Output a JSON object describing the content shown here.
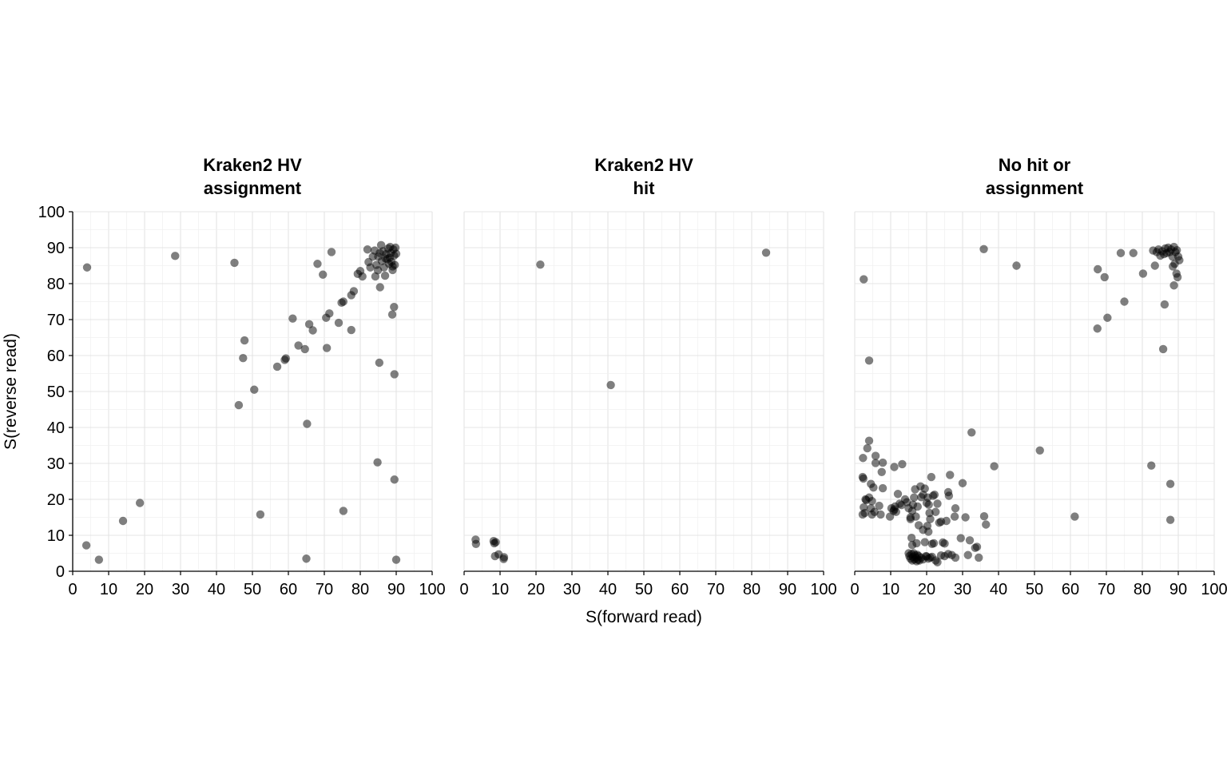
{
  "chart_data": {
    "type": "scatter",
    "xlabel": "S(forward read)",
    "ylabel": "S(reverse read)",
    "xlim": [
      0,
      100
    ],
    "ylim": [
      0,
      100
    ],
    "x_ticks": [
      "0",
      "10",
      "20",
      "30",
      "40",
      "50",
      "60",
      "70",
      "80",
      "90",
      "100"
    ],
    "y_ticks": [
      "0",
      "10",
      "20",
      "30",
      "40",
      "50",
      "60",
      "70",
      "80",
      "90",
      "100"
    ],
    "grid": true,
    "point_color": "#000000",
    "point_opacity": 0.5,
    "facets": [
      {
        "title_lines": [
          "Kraken2 HV",
          "assignment"
        ],
        "points": [
          [
            4,
            84.5
          ],
          [
            28.5,
            87.7
          ],
          [
            45,
            85.8
          ],
          [
            3.8,
            7.2
          ],
          [
            7.3,
            3.2
          ],
          [
            14,
            14
          ],
          [
            18.7,
            19
          ],
          [
            52.2,
            15.8
          ],
          [
            65,
            3.5
          ],
          [
            75.3,
            16.8
          ],
          [
            65.2,
            41
          ],
          [
            84.8,
            30.3
          ],
          [
            89.5,
            25.5
          ],
          [
            90,
            3.2
          ],
          [
            46.2,
            46.2
          ],
          [
            50.5,
            50.5
          ],
          [
            47.4,
            59.3
          ],
          [
            47.8,
            64.2
          ],
          [
            56.9,
            56.9
          ],
          [
            59,
            58.8
          ],
          [
            59.3,
            59.2
          ],
          [
            62.8,
            62.8
          ],
          [
            64.6,
            61.8
          ],
          [
            61.2,
            70.3
          ],
          [
            65.8,
            68.7
          ],
          [
            66.8,
            67
          ],
          [
            70.5,
            70.5
          ],
          [
            71.4,
            71.7
          ],
          [
            70.7,
            62.1
          ],
          [
            74,
            69.1
          ],
          [
            74.8,
            74.7
          ],
          [
            75.3,
            75
          ],
          [
            77.5,
            67.1
          ],
          [
            77.5,
            76.8
          ],
          [
            78.2,
            77.9
          ],
          [
            79.3,
            82.7
          ],
          [
            80,
            83.5
          ],
          [
            80.6,
            82
          ],
          [
            68.1,
            85.5
          ],
          [
            69.6,
            82.5
          ],
          [
            72,
            88.8
          ],
          [
            82,
            89.5
          ],
          [
            82.3,
            86
          ],
          [
            82.8,
            84.5
          ],
          [
            83.5,
            87.5
          ],
          [
            84,
            89.2
          ],
          [
            84.2,
            82
          ],
          [
            84.5,
            85.2
          ],
          [
            84.9,
            83.7
          ],
          [
            85.4,
            88.5
          ],
          [
            85.8,
            90.7
          ],
          [
            86,
            86.3
          ],
          [
            86.3,
            89
          ],
          [
            86.6,
            84.5
          ],
          [
            86.9,
            82.2
          ],
          [
            87.2,
            88.2
          ],
          [
            87.5,
            86.8
          ],
          [
            87.8,
            89.8
          ],
          [
            88,
            85.5
          ],
          [
            88.2,
            87.2
          ],
          [
            88.5,
            88.5
          ],
          [
            88.7,
            86
          ],
          [
            89,
            84.8
          ],
          [
            89.2,
            89.5
          ],
          [
            89.4,
            87.8
          ],
          [
            89.6,
            85.2
          ],
          [
            89.8,
            90
          ],
          [
            90,
            88.3
          ],
          [
            89,
            83.8
          ],
          [
            88.3,
            90.2
          ],
          [
            87,
            87
          ],
          [
            85,
            87.5
          ],
          [
            85.5,
            79
          ],
          [
            88.9,
            71.4
          ],
          [
            89.4,
            73.5
          ],
          [
            85.3,
            58
          ],
          [
            89.5,
            54.8
          ]
        ]
      },
      {
        "title_lines": [
          "Kraken2 HV",
          "hit"
        ],
        "points": [
          [
            21.2,
            85.3
          ],
          [
            84,
            88.6
          ],
          [
            40.8,
            51.8
          ],
          [
            3.2,
            8.8
          ],
          [
            3.3,
            7.6
          ],
          [
            8.2,
            8.4
          ],
          [
            8.8,
            8.1
          ],
          [
            8.4,
            7.8
          ],
          [
            8.6,
            4.2
          ],
          [
            9.6,
            4.7
          ],
          [
            11,
            3.4
          ],
          [
            11.1,
            3.9
          ]
        ]
      },
      {
        "title_lines": [
          "No hit or",
          "assignment"
        ],
        "points": [
          [
            2.5,
            81.2
          ],
          [
            4,
            58.6
          ],
          [
            35.9,
            89.6
          ],
          [
            45,
            85
          ],
          [
            32.5,
            38.6
          ],
          [
            38.8,
            29.2
          ],
          [
            51.5,
            33.6
          ],
          [
            61.2,
            15.2
          ],
          [
            67.5,
            67.5
          ],
          [
            67.6,
            84
          ],
          [
            69.5,
            81.8
          ],
          [
            70.3,
            70.5
          ],
          [
            74,
            88.5
          ],
          [
            75,
            75
          ],
          [
            77.5,
            88.5
          ],
          [
            80.2,
            82.8
          ],
          [
            82.5,
            29.4
          ],
          [
            83,
            89.2
          ],
          [
            83.5,
            85
          ],
          [
            84,
            88.8
          ],
          [
            84.5,
            89.5
          ],
          [
            85,
            87.8
          ],
          [
            85.5,
            89
          ],
          [
            86,
            88.2
          ],
          [
            86.4,
            89.8
          ],
          [
            86.8,
            88.5
          ],
          [
            87.2,
            90
          ],
          [
            87.6,
            88.8
          ],
          [
            88,
            89.5
          ],
          [
            88.4,
            87.5
          ],
          [
            88.8,
            90.2
          ],
          [
            89.2,
            88.8
          ],
          [
            89.6,
            89.3
          ],
          [
            90,
            87.5
          ],
          [
            90.3,
            86.5
          ],
          [
            89,
            85.5
          ],
          [
            88.5,
            84.8
          ],
          [
            89.5,
            82.8
          ],
          [
            89.8,
            81.8
          ],
          [
            88.8,
            79.5
          ],
          [
            86.2,
            74.2
          ],
          [
            85.8,
            61.8
          ],
          [
            87.8,
            24.3
          ],
          [
            87.8,
            14.3
          ],
          [
            2.3,
            31.5
          ],
          [
            3.5,
            34.2
          ],
          [
            4,
            36.3
          ],
          [
            5.8,
            32.1
          ],
          [
            5.8,
            30.1
          ],
          [
            7.5,
            27.6
          ],
          [
            7.8,
            30.2
          ],
          [
            11,
            29
          ],
          [
            13.2,
            29.8
          ],
          [
            2.2,
            26.2
          ],
          [
            2.4,
            25.8
          ],
          [
            4.5,
            24.3
          ],
          [
            5.2,
            23.3
          ],
          [
            7.8,
            23.1
          ],
          [
            2.5,
            17.8
          ],
          [
            3,
            20
          ],
          [
            3.2,
            19.8
          ],
          [
            4,
            20.5
          ],
          [
            4.8,
            19.5
          ],
          [
            2.8,
            16.2
          ],
          [
            2.2,
            15.8
          ],
          [
            4.5,
            17.5
          ],
          [
            4.8,
            15.8
          ],
          [
            5.5,
            16.5
          ],
          [
            6.8,
            18.2
          ],
          [
            7.2,
            15.8
          ],
          [
            9.8,
            15.2
          ],
          [
            10.2,
            17.5
          ],
          [
            10.8,
            16.8
          ],
          [
            11.2,
            18
          ],
          [
            11,
            17.2
          ],
          [
            11.5,
            16.5
          ],
          [
            12,
            21.5
          ],
          [
            12.5,
            18.8
          ],
          [
            13,
            18.4
          ],
          [
            14,
            20
          ],
          [
            14.5,
            19.2
          ],
          [
            15,
            17.5
          ],
          [
            15.5,
            15
          ],
          [
            15.5,
            14.5
          ],
          [
            16,
            16.8
          ],
          [
            16.2,
            18.5
          ],
          [
            16.5,
            20.5
          ],
          [
            16.8,
            22.8
          ],
          [
            17,
            15.2
          ],
          [
            17.5,
            18
          ],
          [
            17.8,
            12.8
          ],
          [
            18.3,
            23.6
          ],
          [
            18.5,
            20.6
          ],
          [
            19,
            21.3
          ],
          [
            19.5,
            23
          ],
          [
            20,
            19
          ],
          [
            20.3,
            20.5
          ],
          [
            20.6,
            18.5
          ],
          [
            20.8,
            16.2
          ],
          [
            21,
            14.5
          ],
          [
            21.3,
            26.2
          ],
          [
            21.8,
            21
          ],
          [
            22.2,
            21.3
          ],
          [
            22.5,
            16.5
          ],
          [
            23,
            18.8
          ],
          [
            23.5,
            13.5
          ],
          [
            24,
            13.8
          ],
          [
            24.5,
            8
          ],
          [
            25,
            7.7
          ],
          [
            25.5,
            14
          ],
          [
            26,
            22
          ],
          [
            26.2,
            21
          ],
          [
            26.5,
            26.8
          ],
          [
            27.8,
            15.2
          ],
          [
            28,
            17.5
          ],
          [
            29.5,
            9.2
          ],
          [
            30,
            24.5
          ],
          [
            30.8,
            15
          ],
          [
            31.5,
            4.5
          ],
          [
            32,
            8.6
          ],
          [
            33.5,
            6.5
          ],
          [
            34,
            6.8
          ],
          [
            34.5,
            3.8
          ],
          [
            36,
            15.3
          ],
          [
            36.5,
            13
          ],
          [
            20.5,
            11
          ],
          [
            20.2,
            12.6
          ],
          [
            19,
            11.5
          ],
          [
            15.8,
            9.3
          ],
          [
            16,
            7.3
          ],
          [
            17.2,
            7.8
          ],
          [
            19.5,
            8.1
          ],
          [
            21.5,
            7.6
          ],
          [
            22,
            7.8
          ],
          [
            15,
            5
          ],
          [
            15.2,
            4.2
          ],
          [
            15.5,
            3.5
          ],
          [
            15.8,
            4.8
          ],
          [
            16,
            3
          ],
          [
            16.2,
            4
          ],
          [
            16.4,
            5
          ],
          [
            16.6,
            3.3
          ],
          [
            16.8,
            4.4
          ],
          [
            17,
            3.8
          ],
          [
            17.2,
            2.8
          ],
          [
            17.4,
            4.6
          ],
          [
            17.6,
            3.2
          ],
          [
            17.8,
            4.2
          ],
          [
            18,
            3
          ],
          [
            18.5,
            3.8
          ],
          [
            19,
            3.3
          ],
          [
            20,
            4.1
          ],
          [
            20.5,
            3.5
          ],
          [
            21,
            3.8
          ],
          [
            21.5,
            4
          ],
          [
            22.5,
            3
          ],
          [
            23,
            2.5
          ],
          [
            24,
            4.4
          ],
          [
            25,
            4.2
          ],
          [
            26,
            4.8
          ],
          [
            27,
            4.5
          ],
          [
            28,
            3.8
          ],
          [
            19.8,
            4.2
          ]
        ]
      }
    ]
  }
}
